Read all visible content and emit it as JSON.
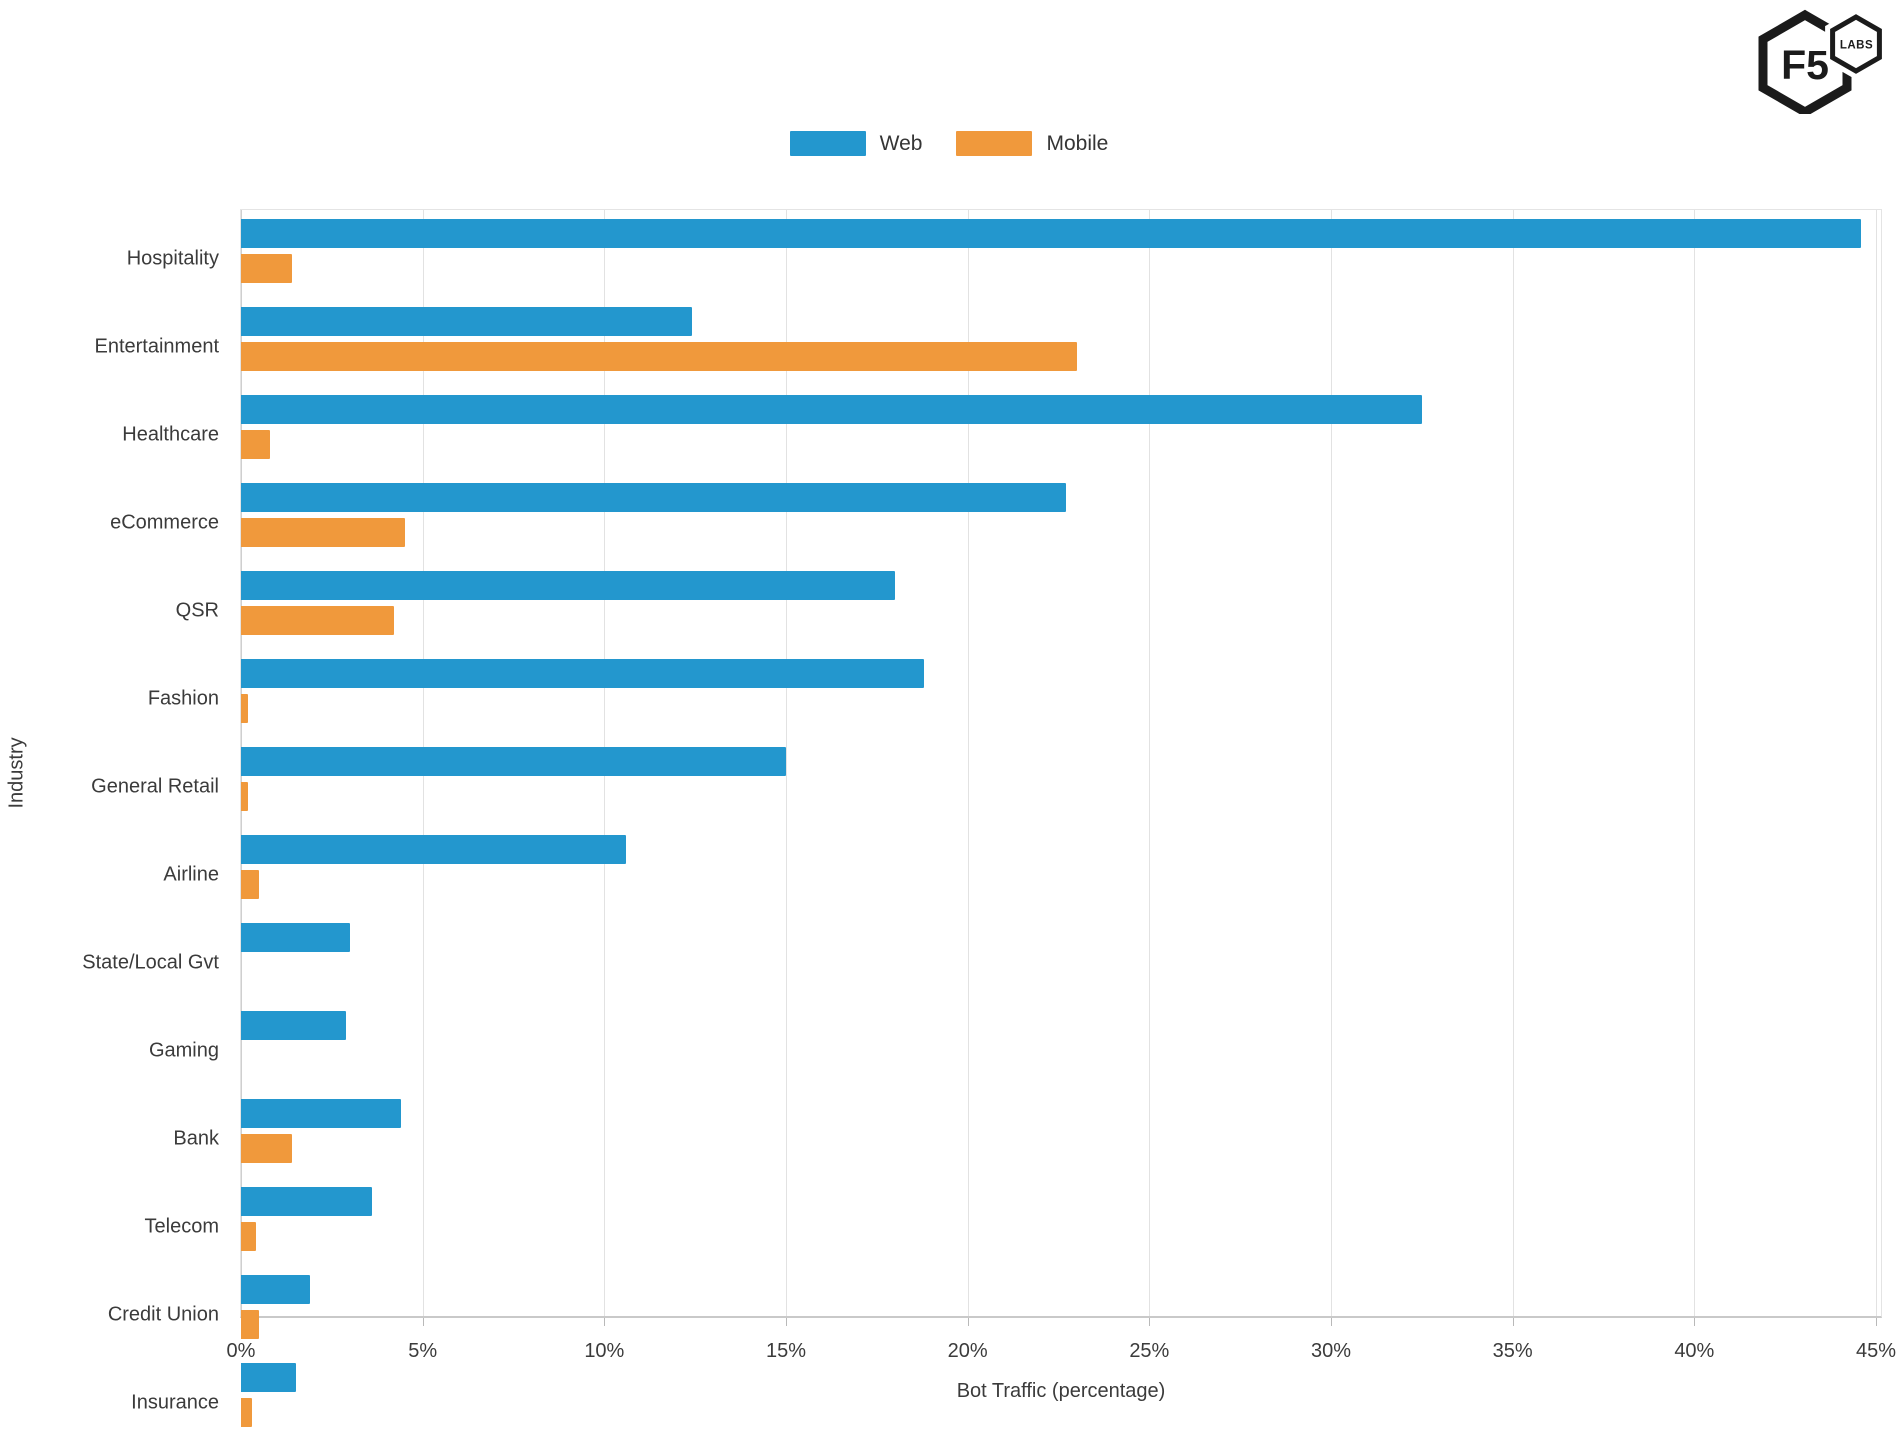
{
  "logo": {
    "main_text": "F5",
    "sub_text": "LABS"
  },
  "chart_data": {
    "type": "bar",
    "orientation": "horizontal",
    "title": "",
    "xlabel": "Bot Traffic (percentage)",
    "ylabel": "Industry",
    "xlim": [
      0,
      45
    ],
    "xticks": [
      "0%",
      "5%",
      "10%",
      "15%",
      "20%",
      "25%",
      "30%",
      "35%",
      "40%",
      "45%"
    ],
    "grid": true,
    "legend_position": "top-center",
    "categories": [
      "Hospitality",
      "Entertainment",
      "Healthcare",
      "eCommerce",
      "QSR",
      "Fashion",
      "General Retail",
      "Airline",
      "State/Local Gvt",
      "Gaming",
      "Bank",
      "Telecom",
      "Credit Union",
      "Insurance"
    ],
    "series": [
      {
        "name": "Web",
        "color": "#2397CE",
        "values": [
          44.6,
          12.4,
          32.5,
          22.7,
          18.0,
          18.8,
          15.0,
          10.6,
          3.0,
          2.9,
          4.4,
          3.6,
          1.9,
          1.5
        ]
      },
      {
        "name": "Mobile",
        "color": "#F0993C",
        "values": [
          1.4,
          23.0,
          0.8,
          4.5,
          4.2,
          0.2,
          0.2,
          0.5,
          0,
          0,
          1.4,
          0.4,
          0.5,
          0.3
        ]
      }
    ]
  }
}
